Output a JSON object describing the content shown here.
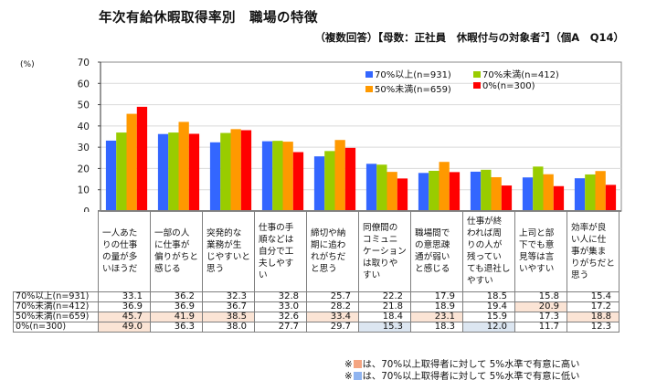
{
  "chart_data": {
    "type": "bar",
    "title": "年次有給休暇取得率別　職場の特徴",
    "subtitle": "（複数回答）【母数：正社員　休暇付与の対象者",
    "subtitle_sup": "2",
    "subtitle_end": "】（個A　Q14）",
    "ylabel": "(%)",
    "xlabel": "",
    "ylim": [
      0,
      70
    ],
    "yticks": [
      0,
      10,
      20,
      30,
      40,
      50,
      60,
      70
    ],
    "grid": true,
    "legend_position": "top-right",
    "categories": [
      "一人あたりの仕事の量が多いほうだ",
      "一部の人に仕事が偏りがちと感じる",
      "突発的な業務が生じやすいと思う",
      "仕事の手順などは自分で工夫しやすい",
      "締切や納期に追われがちだと思う",
      "同僚間のコミュニケーションは取りやすい",
      "職場間での意思疎通が弱いと感じる",
      "仕事が終われば周りの人が残っていても退社しやすい",
      "上司と部下でも意見等は言いやすい",
      "効率が良い人に仕事が集まりがちだと思う"
    ],
    "category_lines": [
      [
        "一人あた",
        "りの仕事",
        "の量が多",
        "いほうだ"
      ],
      [
        "一部の人",
        "に仕事が",
        "偏りがちと",
        "感じる"
      ],
      [
        "突発的な",
        "業務が生",
        "じやすいと",
        "思う"
      ],
      [
        "仕事の手",
        "順などは",
        "自分で工",
        "夫しやす",
        "い"
      ],
      [
        "締切や納",
        "期に追わ",
        "れがちだ",
        "と思う"
      ],
      [
        "同僚間の",
        "コミュニ",
        "ケーション",
        "は取りや",
        "すい"
      ],
      [
        "職場間で",
        "の意思疎",
        "通が弱い",
        "と感じる"
      ],
      [
        "仕事が終",
        "われば周",
        "りの人が",
        "残ってい",
        "ても退社し",
        "やすい"
      ],
      [
        "上司と部",
        "下でも意",
        "見等は言",
        "いやすい"
      ],
      [
        "効率が良",
        "い人に仕",
        "事が集ま",
        "りがちだと",
        "思う"
      ]
    ],
    "series": [
      {
        "name": "70%以上(n=931)",
        "color": "#3366ff",
        "values": [
          33.1,
          36.2,
          32.3,
          32.8,
          25.7,
          22.2,
          17.9,
          18.5,
          15.8,
          15.4
        ],
        "flags": [
          "",
          "",
          "",
          "",
          "",
          "",
          "",
          "",
          "",
          ""
        ]
      },
      {
        "name": "70%未満(n=412)",
        "color": "#99cc00",
        "values": [
          36.9,
          36.9,
          36.7,
          33.0,
          28.2,
          21.8,
          18.9,
          19.4,
          20.9,
          17.2
        ],
        "flags": [
          "",
          "",
          "",
          "",
          "",
          "",
          "",
          "",
          "hi",
          ""
        ]
      },
      {
        "name": "50%未満(n=659)",
        "color": "#ff9900",
        "values": [
          45.7,
          41.9,
          38.5,
          32.6,
          33.4,
          18.4,
          23.1,
          15.9,
          17.3,
          18.8
        ],
        "flags": [
          "hi",
          "hi",
          "hi",
          "",
          "hi",
          "",
          "hi",
          "",
          "",
          "hi"
        ]
      },
      {
        "name": "0%(n=300)",
        "color": "#ff0000",
        "values": [
          49.0,
          36.3,
          38.0,
          27.7,
          29.7,
          15.3,
          18.3,
          12.0,
          11.7,
          12.3
        ],
        "flags": [
          "hi",
          "",
          "",
          "",
          "",
          "lo",
          "",
          "lo",
          "",
          ""
        ]
      }
    ]
  },
  "notes": {
    "prefix": "※",
    "high_color": "#f4a582",
    "low_color": "#8fb4f0",
    "high_text": "は、70%以上取得者に対して 5%水準で有意に高い",
    "low_text": "は、70%以上取得者に対して 5%水準で有意に低い"
  }
}
